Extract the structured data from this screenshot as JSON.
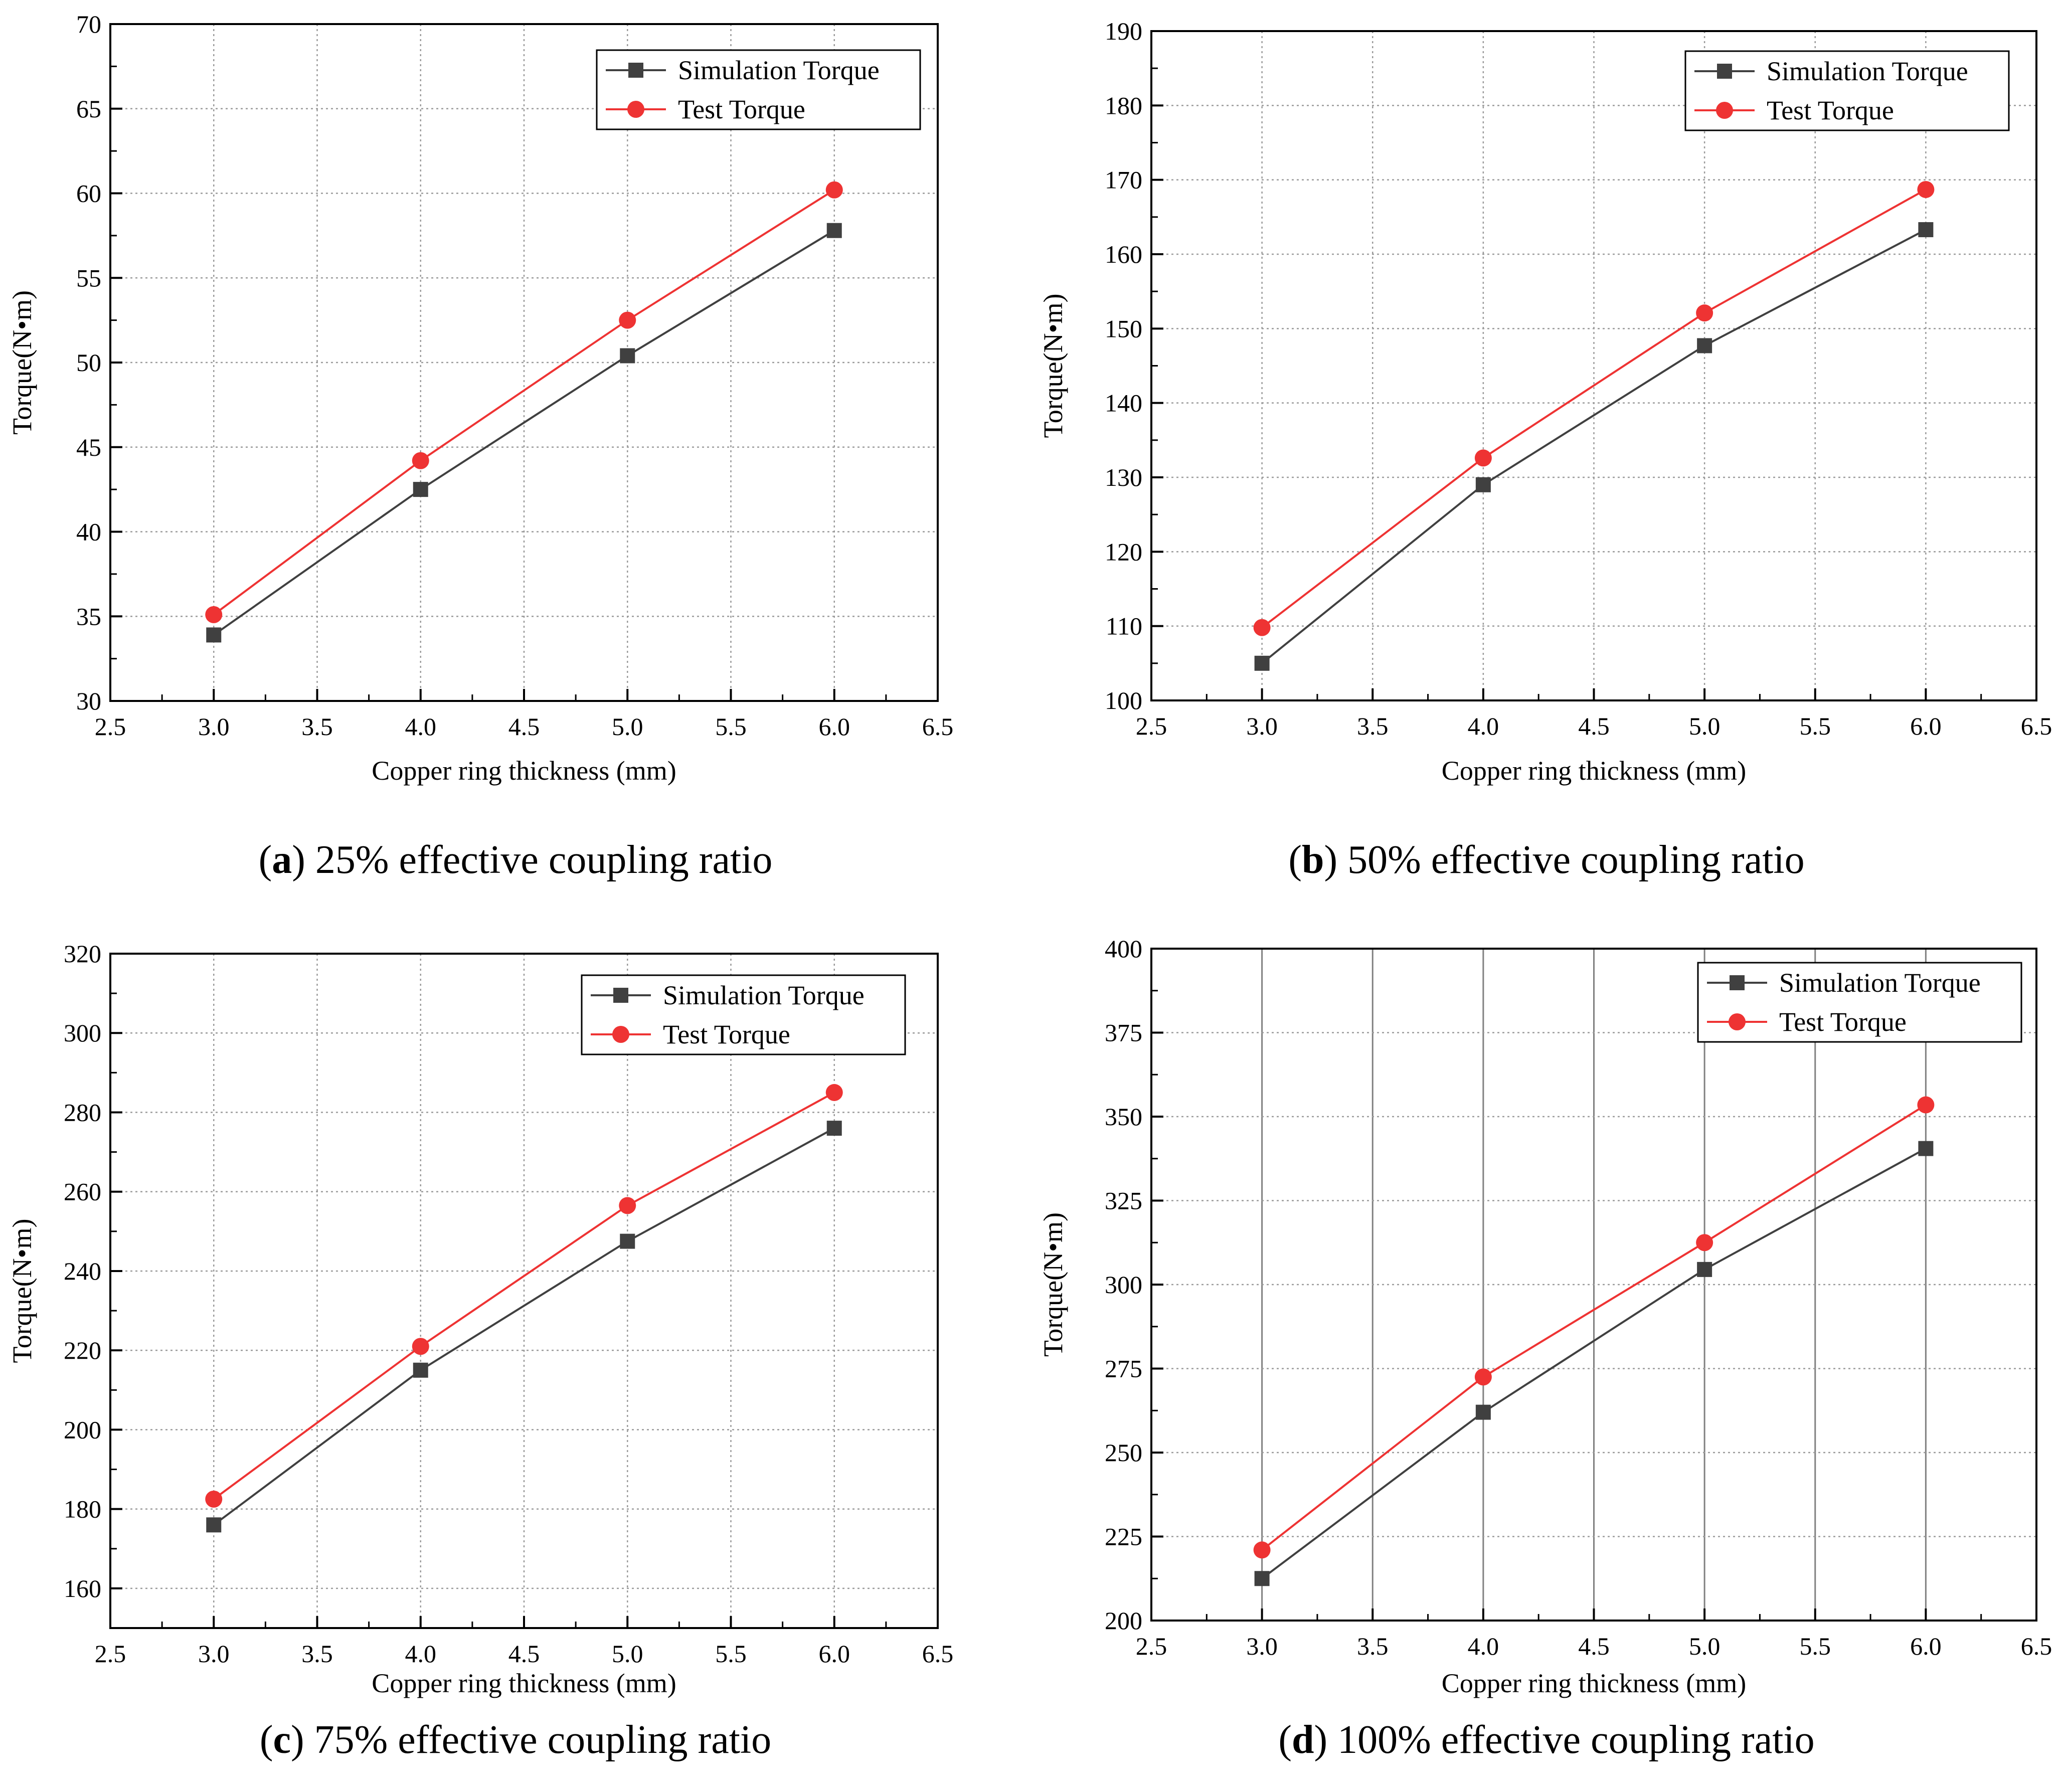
{
  "chart_data": [
    {
      "type": "line",
      "caption_letter": "a",
      "caption_text": "25% effective coupling ratio",
      "xlabel": "Copper ring thickness (mm)",
      "ylabel": "Torque(N•m)",
      "xlim": [
        2.5,
        6.5
      ],
      "ylim": [
        30,
        70
      ],
      "xticks": [
        "2.5",
        "3.0",
        "3.5",
        "4.0",
        "4.5",
        "5.0",
        "5.5",
        "6.0",
        "6.5"
      ],
      "yticks": [
        "30",
        "35",
        "40",
        "45",
        "50",
        "55",
        "60",
        "65",
        "70"
      ],
      "x": [
        3.0,
        4.0,
        5.0,
        6.0
      ],
      "grid": "dotted",
      "legend_position": "top-right",
      "series": [
        {
          "name": "Simulation Torque",
          "values": [
            33.9,
            42.5,
            50.4,
            57.8
          ],
          "color": "#404040",
          "marker": "square"
        },
        {
          "name": "Test Torque",
          "values": [
            35.1,
            44.2,
            52.5,
            60.2
          ],
          "color": "#ee3333",
          "marker": "circle"
        }
      ]
    },
    {
      "type": "line",
      "caption_letter": "b",
      "caption_text": "50% effective coupling ratio",
      "xlabel": "Copper ring thickness (mm)",
      "ylabel": "Torque(N•m)",
      "xlim": [
        2.5,
        6.5
      ],
      "ylim": [
        100,
        190
      ],
      "xticks": [
        "2.5",
        "3.0",
        "3.5",
        "4.0",
        "4.5",
        "5.0",
        "5.5",
        "6.0",
        "6.5"
      ],
      "yticks": [
        "100",
        "110",
        "120",
        "130",
        "140",
        "150",
        "160",
        "170",
        "180",
        "190"
      ],
      "x": [
        3.0,
        4.0,
        5.0,
        6.0
      ],
      "grid": "dotted",
      "legend_position": "top-right",
      "series": [
        {
          "name": "Simulation Torque",
          "values": [
            105,
            129,
            147.7,
            163.3
          ],
          "color": "#404040",
          "marker": "square"
        },
        {
          "name": "Test Torque",
          "values": [
            109.8,
            132.6,
            152.1,
            168.7
          ],
          "color": "#ee3333",
          "marker": "circle"
        }
      ]
    },
    {
      "type": "line",
      "caption_letter": "c",
      "caption_text": "75% effective coupling ratio",
      "xlabel": "Copper ring thickness (mm)",
      "ylabel": "Torque(N•m)",
      "xlim": [
        2.5,
        6.5
      ],
      "ylim": [
        150,
        320
      ],
      "xticks": [
        "2.5",
        "3.0",
        "3.5",
        "4.0",
        "4.5",
        "5.0",
        "5.5",
        "6.0",
        "6.5"
      ],
      "yticks": [
        "160",
        "180",
        "200",
        "220",
        "240",
        "260",
        "280",
        "300",
        "320"
      ],
      "x": [
        3.0,
        4.0,
        5.0,
        6.0
      ],
      "grid": "dotted",
      "legend_position": "top-right",
      "series": [
        {
          "name": "Simulation Torque",
          "values": [
            176,
            215,
            247.5,
            276
          ],
          "color": "#404040",
          "marker": "square"
        },
        {
          "name": "Test Torque",
          "values": [
            182.5,
            221,
            256.5,
            285
          ],
          "color": "#ee3333",
          "marker": "circle"
        }
      ]
    },
    {
      "type": "line",
      "caption_letter": "d",
      "caption_text": "100% effective coupling ratio",
      "xlabel": "Copper ring  thickness (mm)",
      "ylabel": "Torque(N•m)",
      "xlim": [
        2.5,
        6.5
      ],
      "ylim": [
        200,
        400
      ],
      "xticks": [
        "2.5",
        "3.0",
        "3.5",
        "4.0",
        "4.5",
        "5.0",
        "5.5",
        "6.0",
        "6.5"
      ],
      "yticks": [
        "200",
        "225",
        "250",
        "275",
        "300",
        "325",
        "350",
        "375",
        "400"
      ],
      "x": [
        3.0,
        4.0,
        5.0,
        6.0
      ],
      "grid": "solid vertical, dotted horizontal",
      "legend_position": "top-right",
      "series": [
        {
          "name": "Simulation Torque",
          "values": [
            212.5,
            262,
            304.5,
            340.5
          ],
          "color": "#404040",
          "marker": "square"
        },
        {
          "name": "Test Torque",
          "values": [
            221,
            272.5,
            312.5,
            353.5
          ],
          "color": "#ee3333",
          "marker": "circle"
        }
      ]
    }
  ]
}
